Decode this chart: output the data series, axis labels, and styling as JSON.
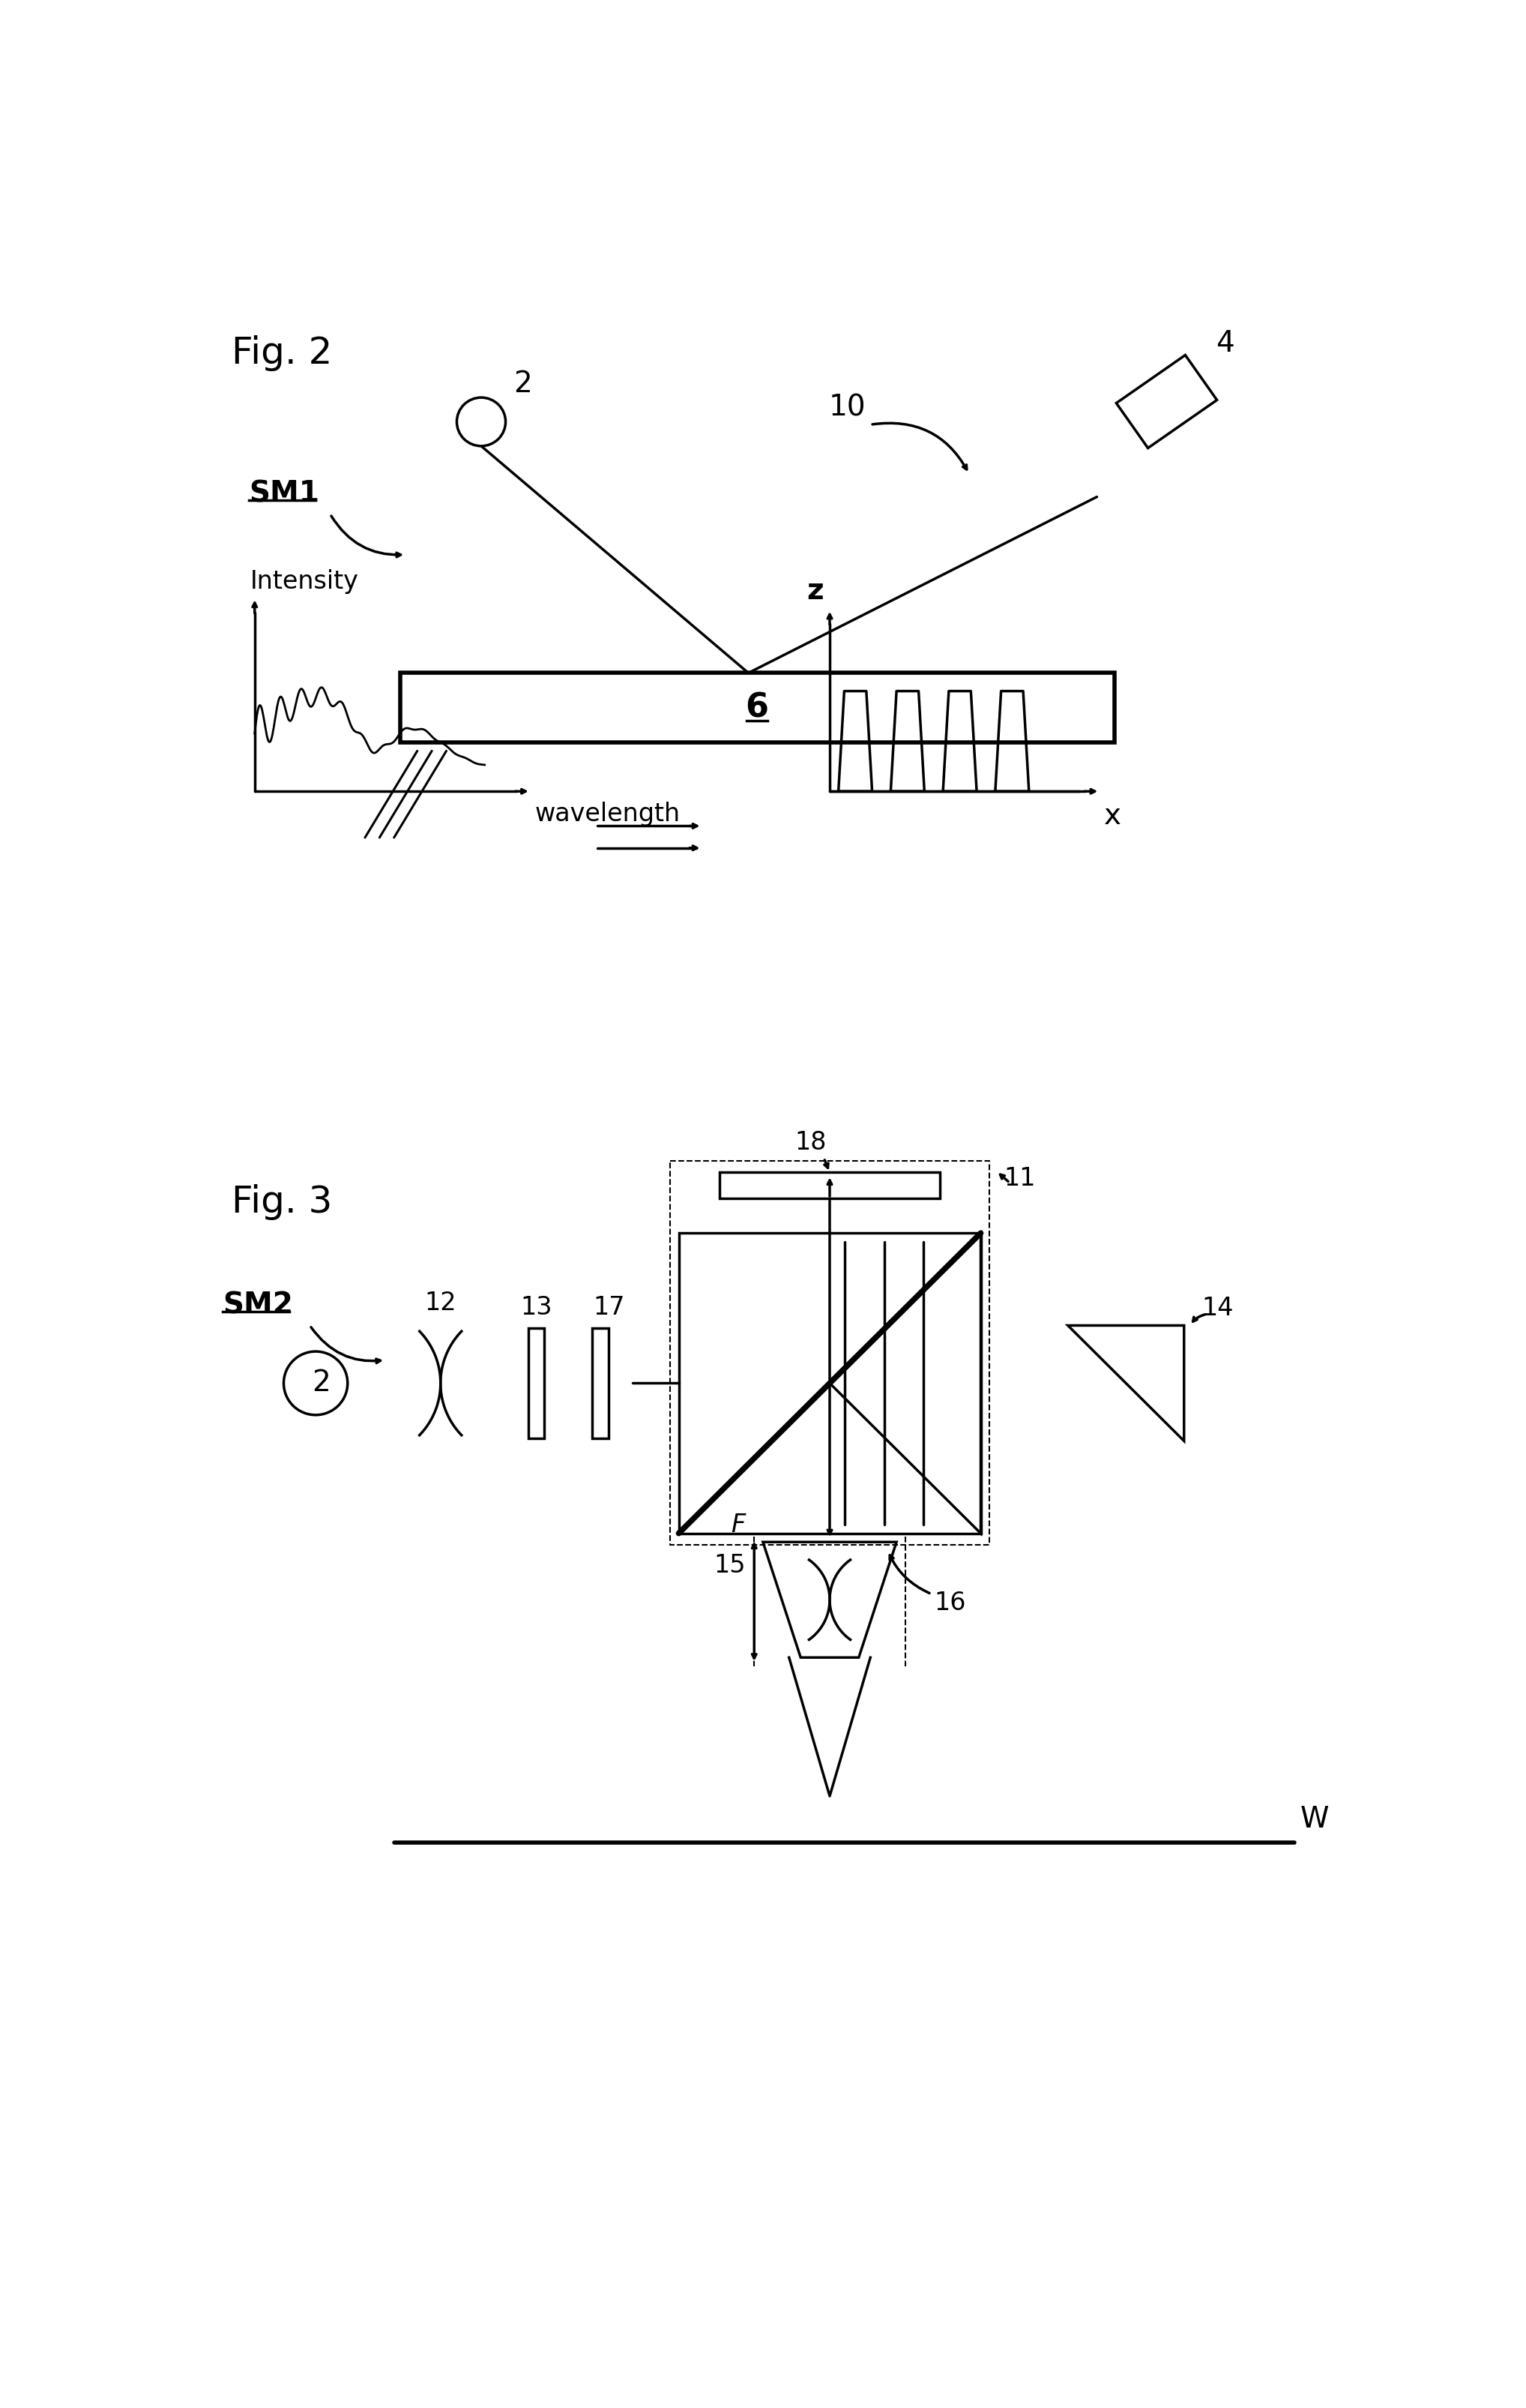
{
  "bg_color": "#ffffff",
  "fig2_title": "Fig. 2",
  "fig3_title": "Fig. 3",
  "label_2": "2",
  "label_4": "4",
  "label_6": "6",
  "label_10": "10",
  "label_SM1": "SM1",
  "label_SM2": "SM2",
  "label_12": "12",
  "label_13": "13",
  "label_14": "14",
  "label_15": "15",
  "label_16": "16",
  "label_17": "17",
  "label_18": "18",
  "label_11": "11",
  "label_F": "F",
  "label_W": "W",
  "label_intensity": "Intensity",
  "label_wavelength": "wavelength",
  "label_z": "z",
  "label_x": "x",
  "lw": 2.5,
  "lw_thick": 4.0,
  "fs_title": 36,
  "fs_label": 28,
  "fs_small": 24
}
